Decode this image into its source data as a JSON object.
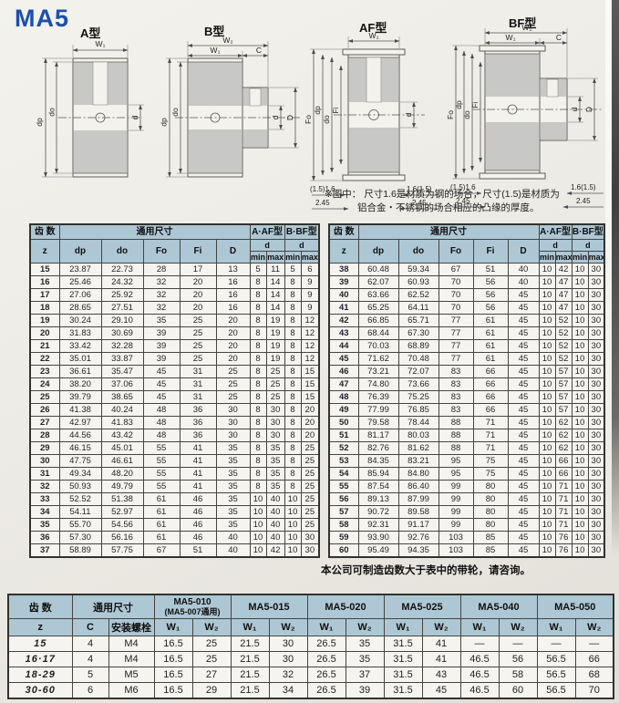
{
  "page": {
    "title": "MA5",
    "materials_note_line1": "※图中： 尺寸1.6是材质为钢的场合，尺寸(1.5)是材质为",
    "materials_note_line2": "铝合金・不锈钢的场合相应的凸缘的厚度。",
    "capacity_note": "本公司可制造齿数大于表中的带轮，请咨询。"
  },
  "colors": {
    "accent_blue": "#1d4fae",
    "table_header_bg": "#aec7d4",
    "paper": "#edebe5",
    "metal_gray": "#c8c8c6"
  },
  "diagrams": {
    "a": {
      "label": "A型",
      "w1": "W₁",
      "dp": "dp",
      "do": "do",
      "d": "d"
    },
    "b": {
      "label": "B型",
      "w2": "W₂",
      "w1": "W₁",
      "c": "C",
      "dp": "dp",
      "do": "do",
      "d": "d",
      "D": "D"
    },
    "af": {
      "label": "AF型",
      "w1": "W₁",
      "fo": "Fo",
      "dp": "dp",
      "do": "do",
      "fi": "Fi",
      "d": "d",
      "flange_left": "(1.5)1.6",
      "flange_right": "1.6(1.5)",
      "t_left": "2.45",
      "t_right": "2.45"
    },
    "bf": {
      "label": "BF型",
      "w2": "W₂",
      "w1": "W₁",
      "c": "C",
      "fo": "Fo",
      "dp": "dp",
      "do": "do",
      "fi": "Fi",
      "d": "d",
      "D": "D",
      "flange_left": "(1.5)1.6",
      "flange_right": "1.6(1.5)",
      "t_left": "2.45",
      "t_right": "2.45"
    }
  },
  "spec_table": {
    "h_teeth": "齿 数",
    "h_common": "通用尺寸",
    "h_aaf": "A·AF型",
    "h_bbf": "B·BF型",
    "h_z": "z",
    "h_dp": "dp",
    "h_do": "do",
    "h_fo": "Fo",
    "h_fi": "Fi",
    "h_D": "D",
    "h_d": "d",
    "h_min": "min",
    "h_max": "max",
    "left_rows": [
      [
        "15",
        "23.87",
        "22.73",
        "28",
        "17",
        "13",
        "5",
        "11",
        "5",
        "6"
      ],
      [
        "16",
        "25.46",
        "24.32",
        "32",
        "20",
        "16",
        "8",
        "14",
        "8",
        "9"
      ],
      [
        "17",
        "27.06",
        "25.92",
        "32",
        "20",
        "16",
        "8",
        "14",
        "8",
        "9"
      ],
      [
        "18",
        "28.65",
        "27.51",
        "32",
        "20",
        "16",
        "8",
        "14",
        "8",
        "9"
      ],
      [
        "19",
        "30.24",
        "29.10",
        "35",
        "25",
        "20",
        "8",
        "19",
        "8",
        "12"
      ],
      [
        "20",
        "31.83",
        "30.69",
        "39",
        "25",
        "20",
        "8",
        "19",
        "8",
        "12"
      ],
      [
        "21",
        "33.42",
        "32.28",
        "39",
        "25",
        "20",
        "8",
        "19",
        "8",
        "12"
      ],
      [
        "22",
        "35.01",
        "33.87",
        "39",
        "25",
        "20",
        "8",
        "19",
        "8",
        "12"
      ],
      [
        "23",
        "36.61",
        "35.47",
        "45",
        "31",
        "25",
        "8",
        "25",
        "8",
        "15"
      ],
      [
        "24",
        "38.20",
        "37.06",
        "45",
        "31",
        "25",
        "8",
        "25",
        "8",
        "15"
      ],
      [
        "25",
        "39.79",
        "38.65",
        "45",
        "31",
        "25",
        "8",
        "25",
        "8",
        "15"
      ],
      [
        "26",
        "41.38",
        "40.24",
        "48",
        "36",
        "30",
        "8",
        "30",
        "8",
        "20"
      ],
      [
        "27",
        "42.97",
        "41.83",
        "48",
        "36",
        "30",
        "8",
        "30",
        "8",
        "20"
      ],
      [
        "28",
        "44.56",
        "43.42",
        "48",
        "36",
        "30",
        "8",
        "30",
        "8",
        "20"
      ],
      [
        "29",
        "46.15",
        "45.01",
        "55",
        "41",
        "35",
        "8",
        "35",
        "8",
        "25"
      ],
      [
        "30",
        "47.75",
        "46.61",
        "55",
        "41",
        "35",
        "8",
        "35",
        "8",
        "25"
      ],
      [
        "31",
        "49.34",
        "48.20",
        "55",
        "41",
        "35",
        "8",
        "35",
        "8",
        "25"
      ],
      [
        "32",
        "50.93",
        "49.79",
        "55",
        "41",
        "35",
        "8",
        "35",
        "8",
        "25"
      ],
      [
        "33",
        "52.52",
        "51.38",
        "61",
        "46",
        "35",
        "10",
        "40",
        "10",
        "25"
      ],
      [
        "34",
        "54.11",
        "52.97",
        "61",
        "46",
        "35",
        "10",
        "40",
        "10",
        "25"
      ],
      [
        "35",
        "55.70",
        "54.56",
        "61",
        "46",
        "35",
        "10",
        "40",
        "10",
        "25"
      ],
      [
        "36",
        "57.30",
        "56.16",
        "61",
        "46",
        "40",
        "10",
        "40",
        "10",
        "30"
      ],
      [
        "37",
        "58.89",
        "57.75",
        "67",
        "51",
        "40",
        "10",
        "42",
        "10",
        "30"
      ]
    ],
    "right_rows": [
      [
        "38",
        "60.48",
        "59.34",
        "67",
        "51",
        "40",
        "10",
        "42",
        "10",
        "30"
      ],
      [
        "39",
        "62.07",
        "60.93",
        "70",
        "56",
        "40",
        "10",
        "47",
        "10",
        "30"
      ],
      [
        "40",
        "63.66",
        "62.52",
        "70",
        "56",
        "45",
        "10",
        "47",
        "10",
        "30"
      ],
      [
        "41",
        "65.25",
        "64.11",
        "70",
        "56",
        "45",
        "10",
        "47",
        "10",
        "30"
      ],
      [
        "42",
        "66.85",
        "65.71",
        "77",
        "61",
        "45",
        "10",
        "52",
        "10",
        "30"
      ],
      [
        "43",
        "68.44",
        "67.30",
        "77",
        "61",
        "45",
        "10",
        "52",
        "10",
        "30"
      ],
      [
        "44",
        "70.03",
        "68.89",
        "77",
        "61",
        "45",
        "10",
        "52",
        "10",
        "30"
      ],
      [
        "45",
        "71.62",
        "70.48",
        "77",
        "61",
        "45",
        "10",
        "52",
        "10",
        "30"
      ],
      [
        "46",
        "73.21",
        "72.07",
        "83",
        "66",
        "45",
        "10",
        "57",
        "10",
        "30"
      ],
      [
        "47",
        "74.80",
        "73.66",
        "83",
        "66",
        "45",
        "10",
        "57",
        "10",
        "30"
      ],
      [
        "48",
        "76.39",
        "75.25",
        "83",
        "66",
        "45",
        "10",
        "57",
        "10",
        "30"
      ],
      [
        "49",
        "77.99",
        "76.85",
        "83",
        "66",
        "45",
        "10",
        "57",
        "10",
        "30"
      ],
      [
        "50",
        "79.58",
        "78.44",
        "88",
        "71",
        "45",
        "10",
        "62",
        "10",
        "30"
      ],
      [
        "51",
        "81.17",
        "80.03",
        "88",
        "71",
        "45",
        "10",
        "62",
        "10",
        "30"
      ],
      [
        "52",
        "82.76",
        "81.62",
        "88",
        "71",
        "45",
        "10",
        "62",
        "10",
        "30"
      ],
      [
        "53",
        "84.35",
        "83.21",
        "95",
        "75",
        "45",
        "10",
        "66",
        "10",
        "30"
      ],
      [
        "54",
        "85.94",
        "84.80",
        "95",
        "75",
        "45",
        "10",
        "66",
        "10",
        "30"
      ],
      [
        "55",
        "87.54",
        "86.40",
        "99",
        "80",
        "45",
        "10",
        "71",
        "10",
        "30"
      ],
      [
        "56",
        "89.13",
        "87.99",
        "99",
        "80",
        "45",
        "10",
        "71",
        "10",
        "30"
      ],
      [
        "57",
        "90.72",
        "89.58",
        "99",
        "80",
        "45",
        "10",
        "71",
        "10",
        "30"
      ],
      [
        "58",
        "92.31",
        "91.17",
        "99",
        "80",
        "45",
        "10",
        "71",
        "10",
        "30"
      ],
      [
        "59",
        "93.90",
        "92.76",
        "103",
        "85",
        "45",
        "10",
        "76",
        "10",
        "30"
      ],
      [
        "60",
        "95.49",
        "94.35",
        "103",
        "85",
        "45",
        "10",
        "76",
        "10",
        "30"
      ]
    ]
  },
  "bolt_table": {
    "h_teeth": "齿  数",
    "h_common": "通用尺寸",
    "h_z": "z",
    "h_c": "C",
    "h_bolt": "安装螺栓",
    "h_w1": "W₁",
    "h_w2": "W₂",
    "groups": [
      {
        "name": "MA5-010",
        "sub": "(MA5-007通用)"
      },
      {
        "name": "MA5-015",
        "sub": ""
      },
      {
        "name": "MA5-020",
        "sub": ""
      },
      {
        "name": "MA5-025",
        "sub": ""
      },
      {
        "name": "MA5-040",
        "sub": ""
      },
      {
        "name": "MA5-050",
        "sub": ""
      }
    ],
    "rows": [
      [
        "15",
        "4",
        "M4",
        "16.5",
        "25",
        "21.5",
        "30",
        "26.5",
        "35",
        "31.5",
        "41",
        "—",
        "—",
        "—",
        "—"
      ],
      [
        "16·17",
        "4",
        "M4",
        "16.5",
        "25",
        "21.5",
        "30",
        "26.5",
        "35",
        "31.5",
        "41",
        "46.5",
        "56",
        "56.5",
        "66"
      ],
      [
        "18-29",
        "5",
        "M5",
        "16.5",
        "27",
        "21.5",
        "32",
        "26.5",
        "37",
        "31.5",
        "43",
        "46.5",
        "58",
        "56.5",
        "68"
      ],
      [
        "30-60",
        "6",
        "M6",
        "16.5",
        "29",
        "21.5",
        "34",
        "26.5",
        "39",
        "31.5",
        "45",
        "46.5",
        "60",
        "56.5",
        "70"
      ]
    ]
  }
}
